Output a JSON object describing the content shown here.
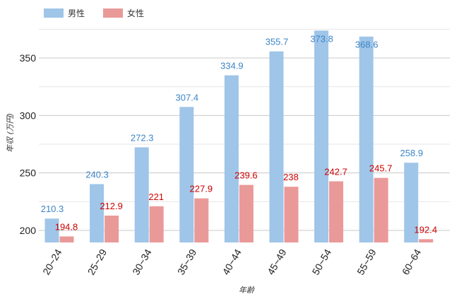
{
  "chart_data": {
    "type": "bar",
    "title": "",
    "xlabel": "年齢",
    "ylabel": "年収 (万円)",
    "categories": [
      "20~24",
      "25~29",
      "30~34",
      "35~39",
      "40~44",
      "45~49",
      "50~54",
      "55~59",
      "60~64"
    ],
    "series": [
      {
        "name": "男性",
        "color": "#9fc5e8",
        "label_color": "#3d85c6",
        "values": [
          210.3,
          240.3,
          272.3,
          307.4,
          334.9,
          355.7,
          373.8,
          368.6,
          258.9
        ]
      },
      {
        "name": "女性",
        "color": "#ea9999",
        "label_color": "#cc0000",
        "values": [
          194.8,
          212.9,
          221,
          227.9,
          239.6,
          238,
          242.7,
          245.7,
          192.4
        ]
      }
    ],
    "yticks": [
      200,
      250,
      300,
      350
    ],
    "ylim": [
      190,
      375
    ],
    "grid": true,
    "legend": "top-left"
  }
}
